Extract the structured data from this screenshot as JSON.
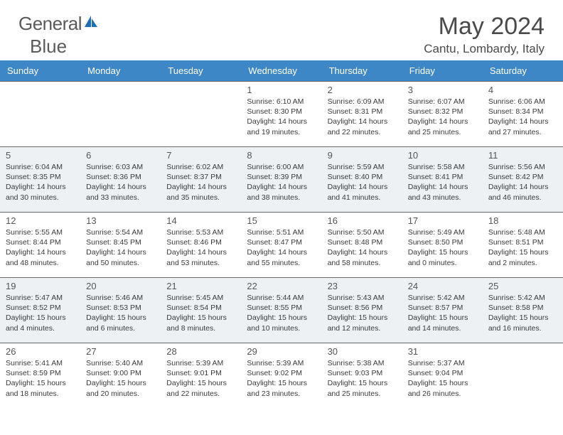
{
  "logo": {
    "text_left": "General",
    "text_right": "Blue"
  },
  "title": "May 2024",
  "location": "Cantu, Lombardy, Italy",
  "colors": {
    "header_bg": "#3e87c6",
    "header_text": "#ffffff",
    "alt_row_bg": "#eef1f4",
    "cell_border": "#6b6b6b",
    "logo_blue": "#1e6db5",
    "text": "#3a3a3a"
  },
  "weekdays": [
    "Sunday",
    "Monday",
    "Tuesday",
    "Wednesday",
    "Thursday",
    "Friday",
    "Saturday"
  ],
  "weeks": [
    {
      "alt": false,
      "days": [
        null,
        null,
        null,
        {
          "n": "1",
          "sunrise": "6:10 AM",
          "sunset": "8:30 PM",
          "daylight": "14 hours and 19 minutes."
        },
        {
          "n": "2",
          "sunrise": "6:09 AM",
          "sunset": "8:31 PM",
          "daylight": "14 hours and 22 minutes."
        },
        {
          "n": "3",
          "sunrise": "6:07 AM",
          "sunset": "8:32 PM",
          "daylight": "14 hours and 25 minutes."
        },
        {
          "n": "4",
          "sunrise": "6:06 AM",
          "sunset": "8:34 PM",
          "daylight": "14 hours and 27 minutes."
        }
      ]
    },
    {
      "alt": true,
      "days": [
        {
          "n": "5",
          "sunrise": "6:04 AM",
          "sunset": "8:35 PM",
          "daylight": "14 hours and 30 minutes."
        },
        {
          "n": "6",
          "sunrise": "6:03 AM",
          "sunset": "8:36 PM",
          "daylight": "14 hours and 33 minutes."
        },
        {
          "n": "7",
          "sunrise": "6:02 AM",
          "sunset": "8:37 PM",
          "daylight": "14 hours and 35 minutes."
        },
        {
          "n": "8",
          "sunrise": "6:00 AM",
          "sunset": "8:39 PM",
          "daylight": "14 hours and 38 minutes."
        },
        {
          "n": "9",
          "sunrise": "5:59 AM",
          "sunset": "8:40 PM",
          "daylight": "14 hours and 41 minutes."
        },
        {
          "n": "10",
          "sunrise": "5:58 AM",
          "sunset": "8:41 PM",
          "daylight": "14 hours and 43 minutes."
        },
        {
          "n": "11",
          "sunrise": "5:56 AM",
          "sunset": "8:42 PM",
          "daylight": "14 hours and 46 minutes."
        }
      ]
    },
    {
      "alt": false,
      "days": [
        {
          "n": "12",
          "sunrise": "5:55 AM",
          "sunset": "8:44 PM",
          "daylight": "14 hours and 48 minutes."
        },
        {
          "n": "13",
          "sunrise": "5:54 AM",
          "sunset": "8:45 PM",
          "daylight": "14 hours and 50 minutes."
        },
        {
          "n": "14",
          "sunrise": "5:53 AM",
          "sunset": "8:46 PM",
          "daylight": "14 hours and 53 minutes."
        },
        {
          "n": "15",
          "sunrise": "5:51 AM",
          "sunset": "8:47 PM",
          "daylight": "14 hours and 55 minutes."
        },
        {
          "n": "16",
          "sunrise": "5:50 AM",
          "sunset": "8:48 PM",
          "daylight": "14 hours and 58 minutes."
        },
        {
          "n": "17",
          "sunrise": "5:49 AM",
          "sunset": "8:50 PM",
          "daylight": "15 hours and 0 minutes."
        },
        {
          "n": "18",
          "sunrise": "5:48 AM",
          "sunset": "8:51 PM",
          "daylight": "15 hours and 2 minutes."
        }
      ]
    },
    {
      "alt": true,
      "days": [
        {
          "n": "19",
          "sunrise": "5:47 AM",
          "sunset": "8:52 PM",
          "daylight": "15 hours and 4 minutes."
        },
        {
          "n": "20",
          "sunrise": "5:46 AM",
          "sunset": "8:53 PM",
          "daylight": "15 hours and 6 minutes."
        },
        {
          "n": "21",
          "sunrise": "5:45 AM",
          "sunset": "8:54 PM",
          "daylight": "15 hours and 8 minutes."
        },
        {
          "n": "22",
          "sunrise": "5:44 AM",
          "sunset": "8:55 PM",
          "daylight": "15 hours and 10 minutes."
        },
        {
          "n": "23",
          "sunrise": "5:43 AM",
          "sunset": "8:56 PM",
          "daylight": "15 hours and 12 minutes."
        },
        {
          "n": "24",
          "sunrise": "5:42 AM",
          "sunset": "8:57 PM",
          "daylight": "15 hours and 14 minutes."
        },
        {
          "n": "25",
          "sunrise": "5:42 AM",
          "sunset": "8:58 PM",
          "daylight": "15 hours and 16 minutes."
        }
      ]
    },
    {
      "alt": false,
      "days": [
        {
          "n": "26",
          "sunrise": "5:41 AM",
          "sunset": "8:59 PM",
          "daylight": "15 hours and 18 minutes."
        },
        {
          "n": "27",
          "sunrise": "5:40 AM",
          "sunset": "9:00 PM",
          "daylight": "15 hours and 20 minutes."
        },
        {
          "n": "28",
          "sunrise": "5:39 AM",
          "sunset": "9:01 PM",
          "daylight": "15 hours and 22 minutes."
        },
        {
          "n": "29",
          "sunrise": "5:39 AM",
          "sunset": "9:02 PM",
          "daylight": "15 hours and 23 minutes."
        },
        {
          "n": "30",
          "sunrise": "5:38 AM",
          "sunset": "9:03 PM",
          "daylight": "15 hours and 25 minutes."
        },
        {
          "n": "31",
          "sunrise": "5:37 AM",
          "sunset": "9:04 PM",
          "daylight": "15 hours and 26 minutes."
        },
        null
      ]
    }
  ],
  "labels": {
    "sunrise": "Sunrise: ",
    "sunset": "Sunset: ",
    "daylight": "Daylight: "
  }
}
